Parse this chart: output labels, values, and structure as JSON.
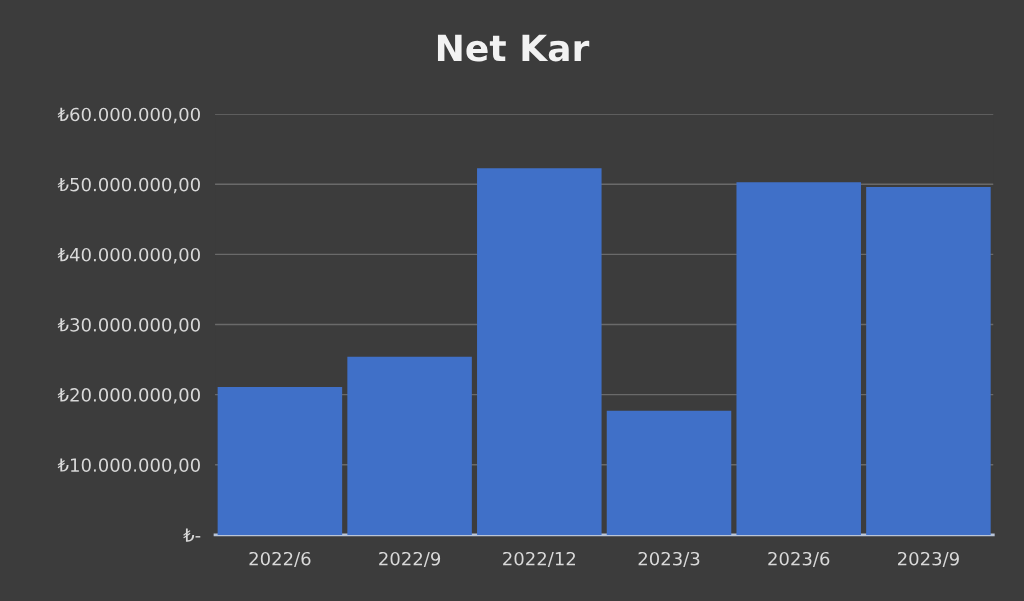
{
  "chart_data": {
    "type": "bar",
    "title": "Net Kar",
    "categories": [
      "2022/6",
      "2022/9",
      "2022/12",
      "2023/3",
      "2023/6",
      "2023/9"
    ],
    "values": [
      21100000,
      25400000,
      52300000,
      17700000,
      50300000,
      49600000
    ],
    "color": "#4070c8",
    "ylim": [
      0,
      60000000
    ],
    "yticks": [
      {
        "value": 0,
        "label": "₺-"
      },
      {
        "value": 10000000,
        "label": "₺10.000.000,00"
      },
      {
        "value": 20000000,
        "label": "₺20.000.000,00"
      },
      {
        "value": 30000000,
        "label": "₺30.000.000,00"
      },
      {
        "value": 40000000,
        "label": "₺40.000.000,00"
      },
      {
        "value": 50000000,
        "label": "₺50.000.000,00"
      },
      {
        "value": 60000000,
        "label": "₺60.000.000,00"
      }
    ],
    "grid": "y"
  }
}
